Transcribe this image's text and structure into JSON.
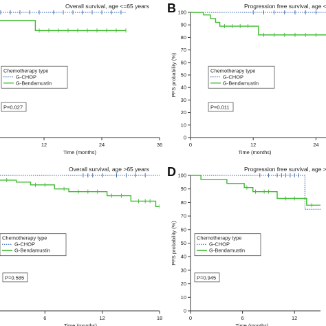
{
  "colors": {
    "gchop": "#2f5fa8",
    "gbenda": "#3dbb2e",
    "axis": "#333333"
  },
  "chart_data": [
    {
      "id": "A",
      "type": "line",
      "letter": "",
      "title": "Overall survival, age <=65 years",
      "xlabel": "Time (months)",
      "ylabel": "",
      "xticks": [
        "12",
        "24",
        "36"
      ],
      "yticks": [],
      "xlim": [
        0,
        36
      ],
      "ylim": [
        0,
        100
      ],
      "legend": {
        "title": "Chemotherapy type",
        "position": "middle-left",
        "entries": [
          "G-CHOP",
          "G-Bendamustin"
        ]
      },
      "pvalue": "P=0.027",
      "series": [
        {
          "name": "G-CHOP",
          "style": "dotted",
          "x": [
            0,
            29
          ],
          "y": [
            100,
            100
          ],
          "censor": [
            1,
            3,
            5,
            7,
            9,
            11,
            14,
            16,
            18,
            20,
            22,
            24,
            26,
            28
          ]
        },
        {
          "name": "G-Bendamustin",
          "style": "solid",
          "x": [
            0,
            0.8,
            0.8,
            10.2,
            10.2,
            29
          ],
          "y": [
            100,
            100,
            93.5,
            93.5,
            85.5,
            85.5
          ],
          "censor": [
            11,
            13,
            15,
            17,
            19,
            21,
            23,
            25,
            27,
            29
          ]
        }
      ]
    },
    {
      "id": "B",
      "type": "line",
      "letter": "B",
      "title": "Progression free survival, age <=65 years",
      "xlabel": "Time (months)",
      "ylabel": "PFS probability (%)",
      "xticks": [
        "0",
        "12",
        "24"
      ],
      "yticks": [
        "0",
        "10",
        "20",
        "30",
        "40",
        "50",
        "60",
        "70",
        "80",
        "90",
        "100"
      ],
      "xlim": [
        0,
        30
      ],
      "ylim": [
        0,
        100
      ],
      "legend": {
        "title": "Chemotherapy type",
        "position": "middle-left",
        "entries": [
          "G-CHOP",
          "G-Bendamustin"
        ]
      },
      "pvalue": "P=0.011",
      "series": [
        {
          "name": "G-CHOP",
          "style": "dotted",
          "x": [
            0,
            29
          ],
          "y": [
            100,
            100
          ],
          "censor": [
            12,
            14,
            16,
            18,
            20,
            22,
            24,
            26,
            28
          ]
        },
        {
          "name": "G-Bendamustin",
          "style": "solid",
          "x": [
            0,
            2.5,
            2.5,
            3.8,
            3.8,
            4.8,
            4.8,
            5.6,
            5.6,
            13,
            13,
            29
          ],
          "y": [
            100,
            100,
            98,
            98,
            95,
            95,
            92,
            92,
            89,
            89,
            82,
            82
          ],
          "censor": [
            6.5,
            8,
            9.5,
            11,
            14,
            16,
            18,
            20,
            22,
            24,
            26,
            28
          ]
        }
      ]
    },
    {
      "id": "C",
      "type": "line",
      "letter": "",
      "title": "Overall survival, age >65 years",
      "xlabel": "Time (months)",
      "ylabel": "",
      "xticks": [
        "6",
        "12",
        "18"
      ],
      "yticks": [],
      "xlim": [
        0,
        18
      ],
      "ylim": [
        0,
        100
      ],
      "legend": {
        "title": "Chemotherapy type",
        "position": "middle-left",
        "entries": [
          "G-CHOP",
          "G-Bendamustin"
        ]
      },
      "pvalue": "P=0.585",
      "series": [
        {
          "name": "G-CHOP",
          "style": "dotted",
          "x": [
            0,
            18
          ],
          "y": [
            100,
            100
          ],
          "censor": [
            10,
            10.5,
            11,
            12,
            13.5,
            14.5,
            15.5,
            16.5
          ]
        },
        {
          "name": "G-Bendamustin",
          "style": "solid",
          "x": [
            0,
            3,
            3,
            4.5,
            4.5,
            7,
            7,
            8.5,
            8.5,
            12.5,
            12.5,
            15,
            15,
            17.6,
            17.6,
            18
          ],
          "y": [
            96.5,
            96.5,
            95,
            95,
            93,
            93,
            90,
            90,
            88,
            88,
            85,
            85,
            81,
            81,
            77,
            77
          ],
          "censor": [
            1,
            2,
            5,
            6,
            8,
            9.5,
            10.5,
            11.5,
            13,
            14,
            15.8,
            16.5,
            17,
            18
          ]
        }
      ]
    },
    {
      "id": "D",
      "type": "line",
      "letter": "D",
      "title": "Progression free survival, age >65 years",
      "xlabel": "Time (months)",
      "ylabel": "PFS probability (%)",
      "xticks": [
        "0",
        "6",
        "12"
      ],
      "yticks": [
        "0",
        "10",
        "20",
        "30",
        "40",
        "50",
        "60",
        "70",
        "80",
        "90",
        "100"
      ],
      "xlim": [
        0,
        15
      ],
      "ylim": [
        0,
        100
      ],
      "legend": {
        "title": "Chemotherapy type",
        "position": "middle-left",
        "entries": [
          "G-CHOP",
          "G-Bendamustin"
        ]
      },
      "pvalue": "P=0.945",
      "series": [
        {
          "name": "G-CHOP",
          "style": "dotted",
          "x": [
            0,
            13.2,
            13.2,
            15
          ],
          "y": [
            100,
            100,
            75,
            75
          ],
          "censor": [
            8,
            9,
            10,
            10.5,
            11,
            11.5,
            12,
            12.5
          ]
        },
        {
          "name": "G-Bendamustin",
          "style": "solid",
          "x": [
            0,
            1.2,
            1.2,
            4.2,
            4.2,
            6.2,
            6.2,
            7.2,
            7.2,
            10,
            10,
            13.4,
            13.4,
            15
          ],
          "y": [
            100,
            100,
            97,
            97,
            94,
            94,
            91,
            91,
            88,
            88,
            83,
            83,
            78,
            78
          ],
          "censor": [
            6.5,
            7.5,
            8.5,
            9,
            11,
            12,
            14
          ]
        }
      ]
    }
  ]
}
